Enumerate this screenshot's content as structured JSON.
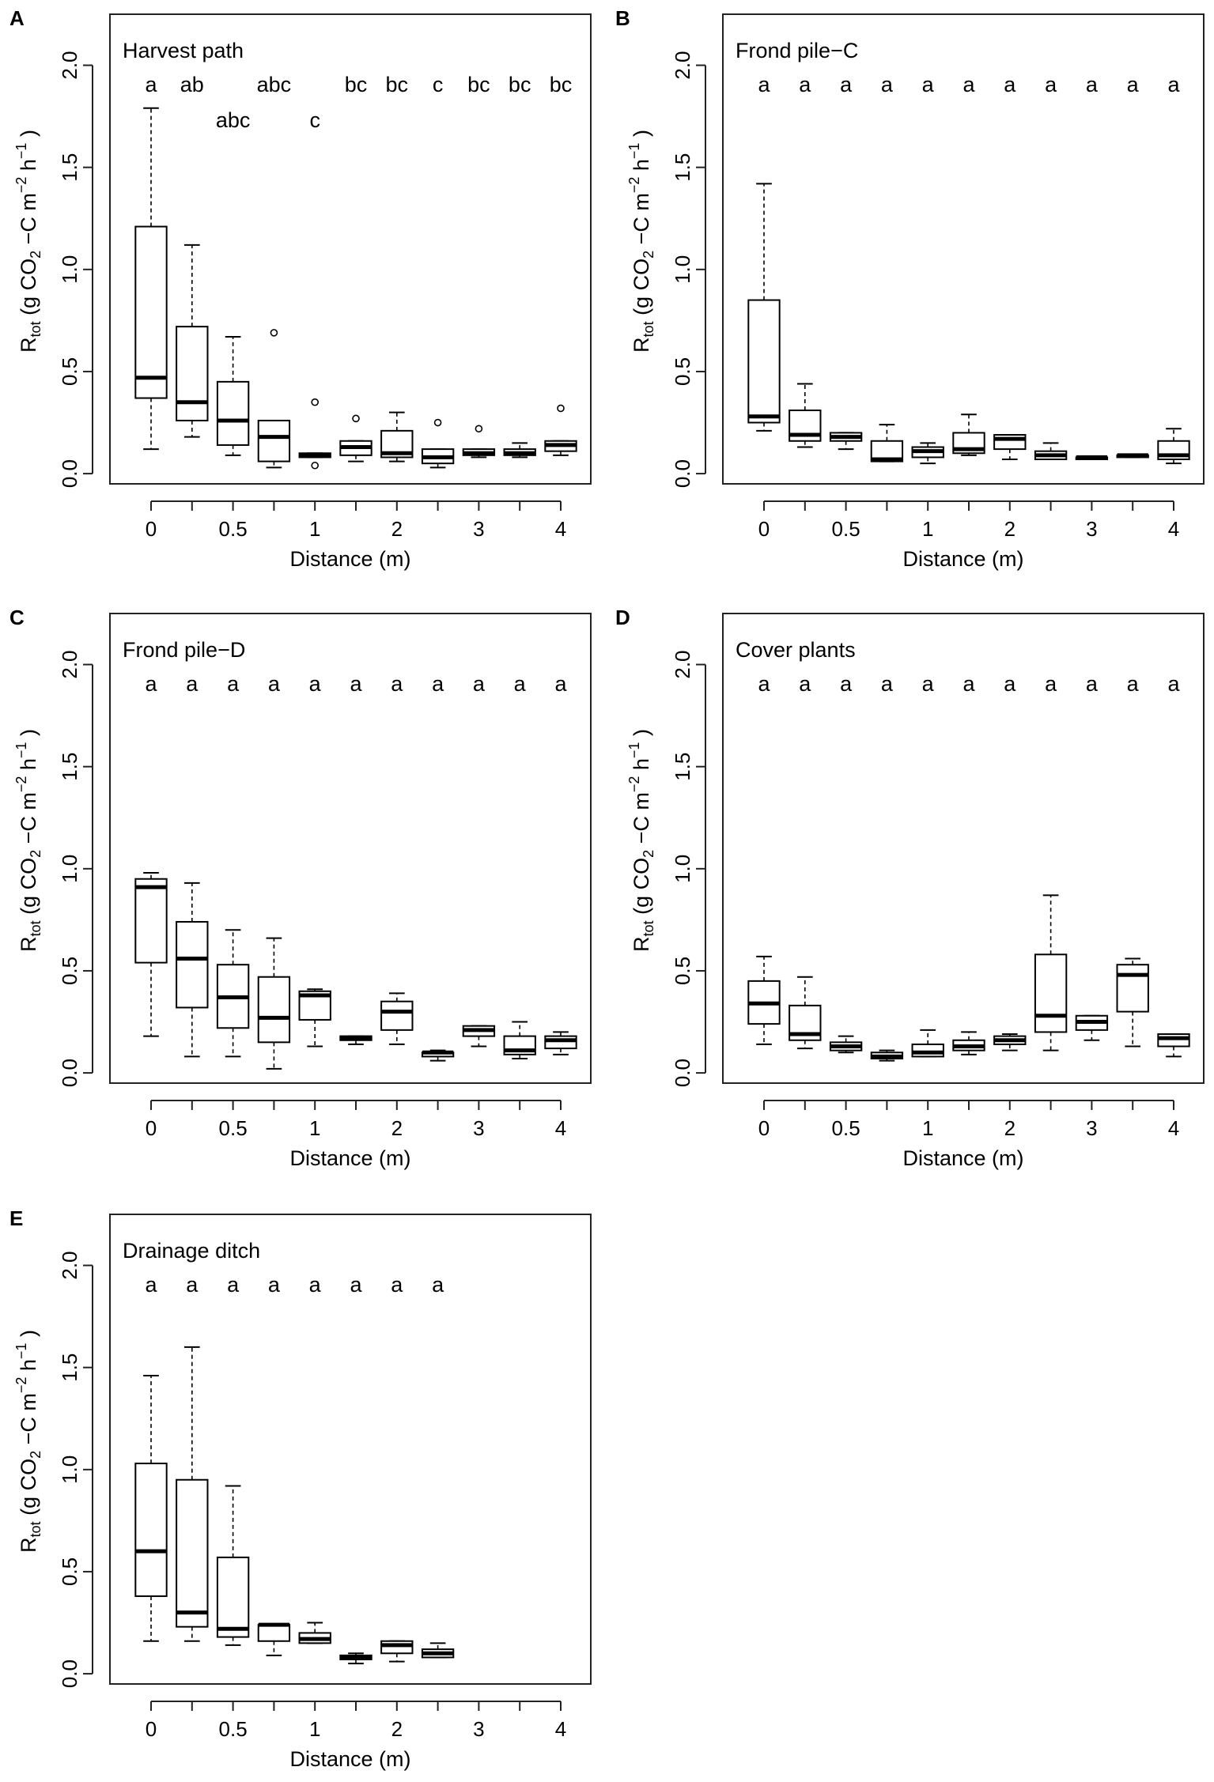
{
  "figure": {
    "ylabel_main": "R",
    "ylabel_sub": "tot",
    "ylabel_unit_pre": "(g CO",
    "ylabel_unit_sub": "2",
    "ylabel_unit_mid": "−C m",
    "ylabel_unit_sup1": "−2",
    "ylabel_unit_h": " h",
    "ylabel_unit_sup2": "−1",
    "ylabel_unit_end": ")",
    "xlabel": "Distance (m)"
  },
  "chart_data": [
    {
      "type": "box",
      "panel": "A",
      "title": "Harvest path",
      "xlabel": "Distance (m)",
      "ylabel": "Rtot (g CO2−C m−2 h−1)",
      "ylim": [
        -0.05,
        2.25
      ],
      "yticks": [
        "0.0",
        "0.5",
        "1.0",
        "1.5",
        "2.0"
      ],
      "xtick_labels": [
        "0",
        "0.5",
        "1",
        "2",
        "3",
        "4"
      ],
      "xtick_positions": [
        0,
        2,
        4,
        6,
        8,
        10
      ],
      "sig_letters": [
        "a",
        "ab",
        "abc",
        "abc",
        "c",
        "bc",
        "bc",
        "c",
        "bc",
        "bc",
        "bc"
      ],
      "sig_raised": [
        false,
        false,
        true,
        false,
        true,
        false,
        false,
        false,
        false,
        false,
        false
      ],
      "boxes": [
        {
          "min": 0.12,
          "q1": 0.37,
          "median": 0.47,
          "q3": 1.21,
          "max": 1.79,
          "outliers": []
        },
        {
          "min": 0.18,
          "q1": 0.26,
          "median": 0.35,
          "q3": 0.72,
          "max": 1.12,
          "outliers": []
        },
        {
          "min": 0.09,
          "q1": 0.14,
          "median": 0.26,
          "q3": 0.45,
          "max": 0.67,
          "outliers": []
        },
        {
          "min": 0.03,
          "q1": 0.06,
          "median": 0.18,
          "q3": 0.26,
          "max": 0.26,
          "outliers": [
            0.69
          ]
        },
        {
          "min": 0.08,
          "q1": 0.08,
          "median": 0.09,
          "q3": 0.1,
          "max": 0.1,
          "outliers": [
            0.35,
            0.04
          ]
        },
        {
          "min": 0.06,
          "q1": 0.09,
          "median": 0.13,
          "q3": 0.16,
          "max": 0.16,
          "outliers": [
            0.27
          ]
        },
        {
          "min": 0.06,
          "q1": 0.08,
          "median": 0.1,
          "q3": 0.21,
          "max": 0.3,
          "outliers": []
        },
        {
          "min": 0.03,
          "q1": 0.05,
          "median": 0.08,
          "q3": 0.12,
          "max": 0.12,
          "outliers": [
            0.25
          ]
        },
        {
          "min": 0.08,
          "q1": 0.09,
          "median": 0.1,
          "q3": 0.12,
          "max": 0.12,
          "outliers": [
            0.22
          ]
        },
        {
          "min": 0.08,
          "q1": 0.09,
          "median": 0.1,
          "q3": 0.12,
          "max": 0.15,
          "outliers": []
        },
        {
          "min": 0.09,
          "q1": 0.11,
          "median": 0.14,
          "q3": 0.16,
          "max": 0.16,
          "outliers": [
            0.32
          ]
        }
      ]
    },
    {
      "type": "box",
      "panel": "B",
      "title": "Frond pile−C",
      "xlabel": "Distance (m)",
      "ylabel": "Rtot (g CO2−C m−2 h−1)",
      "ylim": [
        -0.05,
        2.25
      ],
      "yticks": [
        "0.0",
        "0.5",
        "1.0",
        "1.5",
        "2.0"
      ],
      "xtick_labels": [
        "0",
        "0.5",
        "1",
        "2",
        "3",
        "4"
      ],
      "xtick_positions": [
        0,
        2,
        4,
        6,
        8,
        10
      ],
      "sig_letters": [
        "a",
        "a",
        "a",
        "a",
        "a",
        "a",
        "a",
        "a",
        "a",
        "a",
        "a"
      ],
      "sig_raised": [
        false,
        false,
        false,
        false,
        false,
        false,
        false,
        false,
        false,
        false,
        false
      ],
      "boxes": [
        {
          "min": 0.21,
          "q1": 0.25,
          "median": 0.28,
          "q3": 0.85,
          "max": 1.42,
          "outliers": []
        },
        {
          "min": 0.13,
          "q1": 0.16,
          "median": 0.19,
          "q3": 0.31,
          "max": 0.44,
          "outliers": []
        },
        {
          "min": 0.12,
          "q1": 0.16,
          "median": 0.18,
          "q3": 0.2,
          "max": 0.2,
          "outliers": []
        },
        {
          "min": 0.06,
          "q1": 0.06,
          "median": 0.07,
          "q3": 0.16,
          "max": 0.24,
          "outliers": []
        },
        {
          "min": 0.05,
          "q1": 0.08,
          "median": 0.11,
          "q3": 0.13,
          "max": 0.15,
          "outliers": []
        },
        {
          "min": 0.09,
          "q1": 0.1,
          "median": 0.12,
          "q3": 0.2,
          "max": 0.29,
          "outliers": []
        },
        {
          "min": 0.07,
          "q1": 0.12,
          "median": 0.17,
          "q3": 0.19,
          "max": 0.19,
          "outliers": []
        },
        {
          "min": 0.07,
          "q1": 0.07,
          "median": 0.09,
          "q3": 0.11,
          "max": 0.15,
          "outliers": []
        },
        {
          "min": 0.07,
          "q1": 0.07,
          "median": 0.08,
          "q3": 0.08,
          "max": 0.08,
          "outliers": []
        },
        {
          "min": 0.08,
          "q1": 0.08,
          "median": 0.09,
          "q3": 0.09,
          "max": 0.09,
          "outliers": []
        },
        {
          "min": 0.05,
          "q1": 0.07,
          "median": 0.09,
          "q3": 0.16,
          "max": 0.22,
          "outliers": []
        }
      ]
    },
    {
      "type": "box",
      "panel": "C",
      "title": "Frond pile−D",
      "xlabel": "Distance (m)",
      "ylabel": "Rtot (g CO2−C m−2 h−1)",
      "ylim": [
        -0.05,
        2.25
      ],
      "yticks": [
        "0.0",
        "0.5",
        "1.0",
        "1.5",
        "2.0"
      ],
      "xtick_labels": [
        "0",
        "0.5",
        "1",
        "2",
        "3",
        "4"
      ],
      "xtick_positions": [
        0,
        2,
        4,
        6,
        8,
        10
      ],
      "sig_letters": [
        "a",
        "a",
        "a",
        "a",
        "a",
        "a",
        "a",
        "a",
        "a",
        "a",
        "a"
      ],
      "sig_raised": [
        false,
        false,
        false,
        false,
        false,
        false,
        false,
        false,
        false,
        false,
        false
      ],
      "boxes": [
        {
          "min": 0.18,
          "q1": 0.54,
          "median": 0.91,
          "q3": 0.95,
          "max": 0.98,
          "outliers": []
        },
        {
          "min": 0.08,
          "q1": 0.32,
          "median": 0.56,
          "q3": 0.74,
          "max": 0.93,
          "outliers": []
        },
        {
          "min": 0.08,
          "q1": 0.22,
          "median": 0.37,
          "q3": 0.53,
          "max": 0.7,
          "outliers": []
        },
        {
          "min": 0.02,
          "q1": 0.15,
          "median": 0.27,
          "q3": 0.47,
          "max": 0.66,
          "outliers": []
        },
        {
          "min": 0.13,
          "q1": 0.26,
          "median": 0.38,
          "q3": 0.4,
          "max": 0.41,
          "outliers": []
        },
        {
          "min": 0.14,
          "q1": 0.16,
          "median": 0.17,
          "q3": 0.18,
          "max": 0.18,
          "outliers": []
        },
        {
          "min": 0.14,
          "q1": 0.21,
          "median": 0.3,
          "q3": 0.35,
          "max": 0.39,
          "outliers": []
        },
        {
          "min": 0.06,
          "q1": 0.08,
          "median": 0.1,
          "q3": 0.1,
          "max": 0.11,
          "outliers": []
        },
        {
          "min": 0.13,
          "q1": 0.18,
          "median": 0.21,
          "q3": 0.23,
          "max": 0.23,
          "outliers": []
        },
        {
          "min": 0.07,
          "q1": 0.09,
          "median": 0.11,
          "q3": 0.18,
          "max": 0.25,
          "outliers": []
        },
        {
          "min": 0.09,
          "q1": 0.12,
          "median": 0.16,
          "q3": 0.18,
          "max": 0.2,
          "outliers": []
        }
      ]
    },
    {
      "type": "box",
      "panel": "D",
      "title": "Cover plants",
      "xlabel": "Distance (m)",
      "ylabel": "Rtot (g CO2−C m−2 h−1)",
      "ylim": [
        -0.05,
        2.25
      ],
      "yticks": [
        "0.0",
        "0.5",
        "1.0",
        "1.5",
        "2.0"
      ],
      "xtick_labels": [
        "0",
        "0.5",
        "1",
        "2",
        "3",
        "4"
      ],
      "xtick_positions": [
        0,
        2,
        4,
        6,
        8,
        10
      ],
      "sig_letters": [
        "a",
        "a",
        "a",
        "a",
        "a",
        "a",
        "a",
        "a",
        "a",
        "a",
        "a"
      ],
      "sig_raised": [
        false,
        false,
        false,
        false,
        false,
        false,
        false,
        false,
        false,
        false,
        false
      ],
      "boxes": [
        {
          "min": 0.14,
          "q1": 0.24,
          "median": 0.34,
          "q3": 0.45,
          "max": 0.57,
          "outliers": []
        },
        {
          "min": 0.12,
          "q1": 0.16,
          "median": 0.19,
          "q3": 0.33,
          "max": 0.47,
          "outliers": []
        },
        {
          "min": 0.1,
          "q1": 0.11,
          "median": 0.13,
          "q3": 0.15,
          "max": 0.18,
          "outliers": []
        },
        {
          "min": 0.06,
          "q1": 0.07,
          "median": 0.08,
          "q3": 0.1,
          "max": 0.11,
          "outliers": []
        },
        {
          "min": 0.08,
          "q1": 0.08,
          "median": 0.1,
          "q3": 0.14,
          "max": 0.21,
          "outliers": []
        },
        {
          "min": 0.09,
          "q1": 0.11,
          "median": 0.13,
          "q3": 0.16,
          "max": 0.2,
          "outliers": []
        },
        {
          "min": 0.11,
          "q1": 0.14,
          "median": 0.16,
          "q3": 0.18,
          "max": 0.19,
          "outliers": []
        },
        {
          "min": 0.11,
          "q1": 0.2,
          "median": 0.28,
          "q3": 0.58,
          "max": 0.87,
          "outliers": []
        },
        {
          "min": 0.16,
          "q1": 0.21,
          "median": 0.25,
          "q3": 0.28,
          "max": 0.28,
          "outliers": []
        },
        {
          "min": 0.13,
          "q1": 0.3,
          "median": 0.48,
          "q3": 0.53,
          "max": 0.56,
          "outliers": []
        },
        {
          "min": 0.08,
          "q1": 0.13,
          "median": 0.17,
          "q3": 0.19,
          "max": 0.19,
          "outliers": []
        }
      ]
    },
    {
      "type": "box",
      "panel": "E",
      "title": "Drainage ditch",
      "xlabel": "Distance (m)",
      "ylabel": "Rtot (g CO2−C m−2 h−1)",
      "ylim": [
        -0.05,
        2.25
      ],
      "yticks": [
        "0.0",
        "0.5",
        "1.0",
        "1.5",
        "2.0"
      ],
      "xtick_labels": [
        "0",
        "0.5",
        "1",
        "2",
        "3",
        "4"
      ],
      "xtick_positions": [
        0,
        2,
        4,
        6,
        8,
        10
      ],
      "sig_letters": [
        "a",
        "a",
        "a",
        "a",
        "a",
        "a",
        "a",
        "a"
      ],
      "sig_raised": [
        false,
        false,
        false,
        false,
        false,
        false,
        false,
        false
      ],
      "boxes": [
        {
          "min": 0.16,
          "q1": 0.38,
          "median": 0.6,
          "q3": 1.03,
          "max": 1.46,
          "outliers": []
        },
        {
          "min": 0.16,
          "q1": 0.23,
          "median": 0.3,
          "q3": 0.95,
          "max": 1.6,
          "outliers": []
        },
        {
          "min": 0.14,
          "q1": 0.18,
          "median": 0.22,
          "q3": 0.57,
          "max": 0.92,
          "outliers": []
        },
        {
          "min": 0.09,
          "q1": 0.16,
          "median": 0.24,
          "q3": 0.24,
          "max": 0.24,
          "outliers": []
        },
        {
          "min": 0.15,
          "q1": 0.15,
          "median": 0.17,
          "q3": 0.2,
          "max": 0.25,
          "outliers": []
        },
        {
          "min": 0.05,
          "q1": 0.07,
          "median": 0.08,
          "q3": 0.09,
          "max": 0.1,
          "outliers": []
        },
        {
          "min": 0.06,
          "q1": 0.1,
          "median": 0.14,
          "q3": 0.16,
          "max": 0.16,
          "outliers": []
        },
        {
          "min": 0.08,
          "q1": 0.08,
          "median": 0.1,
          "q3": 0.12,
          "max": 0.15,
          "outliers": []
        }
      ]
    }
  ]
}
